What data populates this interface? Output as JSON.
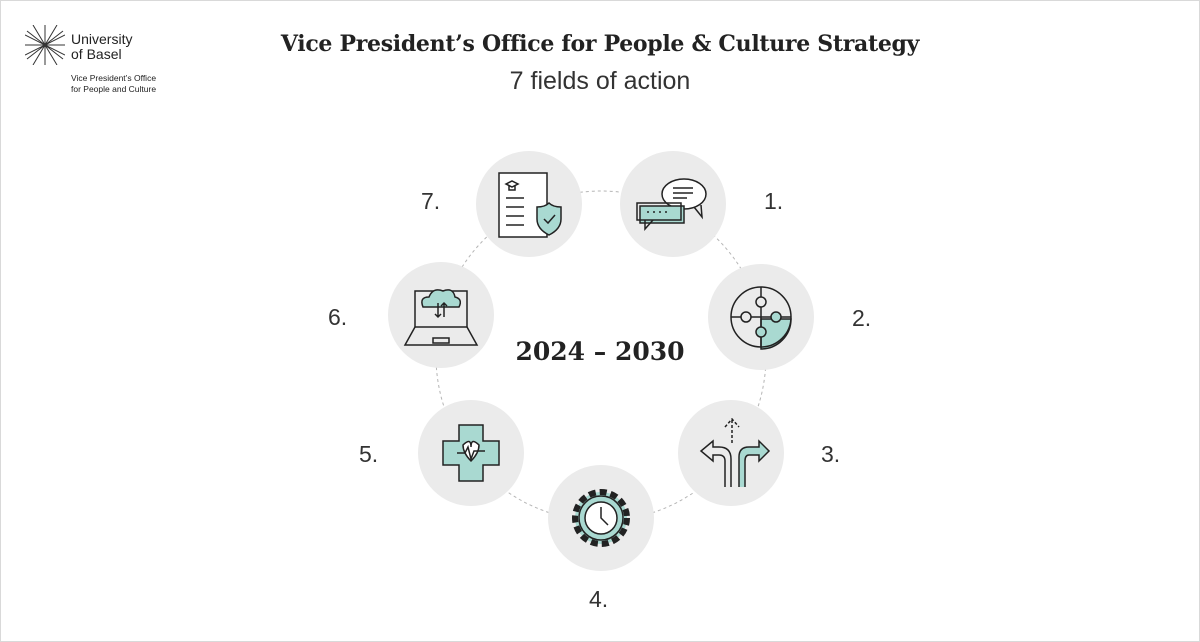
{
  "logo": {
    "name": "University of Basel",
    "name_line1": "University",
    "name_line2": "of Basel",
    "sub_line1": "Vice President’s Office",
    "sub_line2": "for People and Culture"
  },
  "title": "Vice President’s Office for People & Culture Strategy",
  "subtitle": "7 fields of action",
  "period": "2024 – 2030",
  "colors": {
    "circle": "#ebebeb",
    "accent": "#a9d9d1",
    "line": "#222222",
    "connector": "#b5b5b5"
  },
  "fields": [
    {
      "number": "1.",
      "icon": "speech-bubbles-icon"
    },
    {
      "number": "2.",
      "icon": "puzzle-icon"
    },
    {
      "number": "3.",
      "icon": "crossroads-arrows-icon"
    },
    {
      "number": "4.",
      "icon": "gear-clock-icon"
    },
    {
      "number": "5.",
      "icon": "health-cross-heartbeat-icon"
    },
    {
      "number": "6.",
      "icon": "laptop-cloud-icon"
    },
    {
      "number": "7.",
      "icon": "document-shield-icon"
    }
  ]
}
